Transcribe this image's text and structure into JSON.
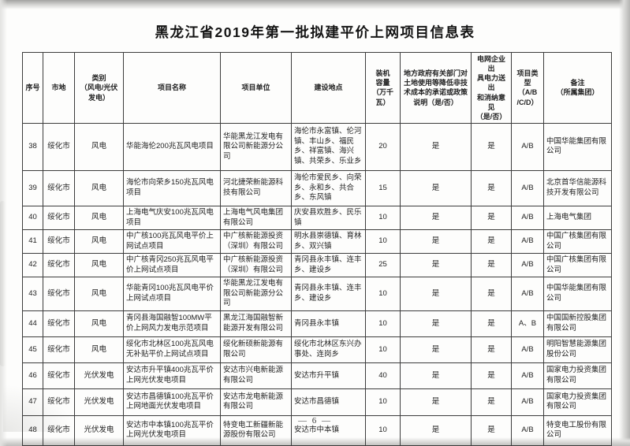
{
  "page": {
    "title": "黑龙江省2019年第一批拟建平价上网项目信息表",
    "page_number": "— 6 —"
  },
  "table": {
    "headers": [
      "序号",
      "市地",
      "类别\n（风电/光伏\n发电）",
      "项目名称",
      "项目单位",
      "建设地点",
      "装机\n容量\n（万千瓦）",
      "地方政府有关部门对\n土地使用等降低非技\n术成本的承诺或政策\n说明（是/否）",
      "电网企业出\n具电力送出\n和消纳意见\n（是/否）",
      "项目类型\n（A/B\n/C/D）",
      "备注\n（所属集团）"
    ],
    "rows": [
      {
        "no": "38",
        "city": "绥化市",
        "category": "风电",
        "project": "华能海伦200兆瓦风电项目",
        "unit": "华能黑龙江发电有限公司新能源分公司",
        "location": "海伦市永富镇、伦河镇、丰山乡、福民乡、祥富镇、海兴镇、共荣乡、乐业乡",
        "capacity": "20",
        "land_policy": "是",
        "grid_opinion": "是",
        "type": "A/B",
        "group": "中国华能集团有限公司"
      },
      {
        "no": "39",
        "city": "绥化市",
        "category": "风电",
        "project": "海伦市向荣乡150兆瓦风电项目",
        "unit": "河北捷荣新能源科技有限公司",
        "location": "海伦市爱民乡、向荣乡、永和乡、共合乡、东风镇",
        "capacity": "15",
        "land_policy": "是",
        "grid_opinion": "是",
        "type": "A/B",
        "group": "北京首华信能源科技开发有限公司"
      },
      {
        "no": "40",
        "city": "绥化市",
        "category": "风电",
        "project": "上海电气庆安100兆瓦风电项目",
        "unit": "上海电气风电集团有限公司",
        "location": "庆安县欢胜乡、民乐镇",
        "capacity": "10",
        "land_policy": "是",
        "grid_opinion": "是",
        "type": "A/B",
        "group": "上海电气集团"
      },
      {
        "no": "41",
        "city": "绥化市",
        "category": "风电",
        "project": "中广核100兆瓦风电平价上网试点项目",
        "unit": "中广核新能源投资（深圳）有限公司",
        "location": "明水县崇德镇、育林乡、双兴镇",
        "capacity": "10",
        "land_policy": "是",
        "grid_opinion": "是",
        "type": "A/B",
        "group": "中国广核集团有限公司"
      },
      {
        "no": "42",
        "city": "绥化市",
        "category": "风电",
        "project": "中广核青冈250兆瓦风电平价上网试点项目",
        "unit": "中广核新能源投资（深圳）有限公司",
        "location": "青冈县永丰镇、连丰乡、建设乡",
        "capacity": "25",
        "land_policy": "是",
        "grid_opinion": "是",
        "type": "A/B",
        "group": "中国广核集团有限公司"
      },
      {
        "no": "43",
        "city": "绥化市",
        "category": "风电",
        "project": "华能青冈100兆瓦风电平价上网试点项目",
        "unit": "华能黑龙江发电有限公司新能源分公司",
        "location": "青冈县永丰镇、连丰乡、建设乡",
        "capacity": "10",
        "land_policy": "是",
        "grid_opinion": "是",
        "type": "A/B",
        "group": "中国华能集团有限公司"
      },
      {
        "no": "44",
        "city": "绥化市",
        "category": "风电",
        "project": "青冈县海国融智100MW平价上网风力发电示范项目",
        "unit": "黑龙江海国融智新能源开发有限公司",
        "location": "青冈县永丰镇",
        "capacity": "10",
        "land_policy": "是",
        "grid_opinion": "是",
        "type": "A、B",
        "group": "中国国新控股集团有限公司"
      },
      {
        "no": "45",
        "city": "绥化市",
        "category": "风电",
        "project": "绥化市北林区100兆瓦风电无补贴平价上网试点项目",
        "unit": "绥化新硕新能源有限公司",
        "location": "绥化市北林区东兴办事处、连岗乡",
        "capacity": "10",
        "land_policy": "是",
        "grid_opinion": "是",
        "type": "A/B",
        "group": "明阳智慧能源集团股份公司"
      },
      {
        "no": "46",
        "city": "绥化市",
        "category": "光伏发电",
        "project": "安达市升平镇400兆瓦平价上网光伏发电项目",
        "unit": "安达市兴电新能源有限公司",
        "location": "安达市升平镇",
        "capacity": "40",
        "land_policy": "是",
        "grid_opinion": "是",
        "type": "A/B",
        "group": "国家电力投资集团有限公司"
      },
      {
        "no": "47",
        "city": "绥化市",
        "category": "光伏发电",
        "project": "安达市昌德镇100兆瓦平价上网地面光伏发电项目",
        "unit": "安达市龙电新能源有限公司",
        "location": "安达市昌德镇",
        "capacity": "10",
        "land_policy": "是",
        "grid_opinion": "是",
        "type": "A/B",
        "group": "国家电力投资集团有限公司"
      },
      {
        "no": "48",
        "city": "绥化市",
        "category": "光伏发电",
        "project": "安达市中本镇100兆瓦平价上网光伏发电项目",
        "unit": "特变电工新疆新能源股份有限公司",
        "location": "安达市中本镇",
        "capacity": "10",
        "land_policy": "是",
        "grid_opinion": "是",
        "type": "A/B",
        "group": "特变电工股份有限公司"
      }
    ]
  }
}
